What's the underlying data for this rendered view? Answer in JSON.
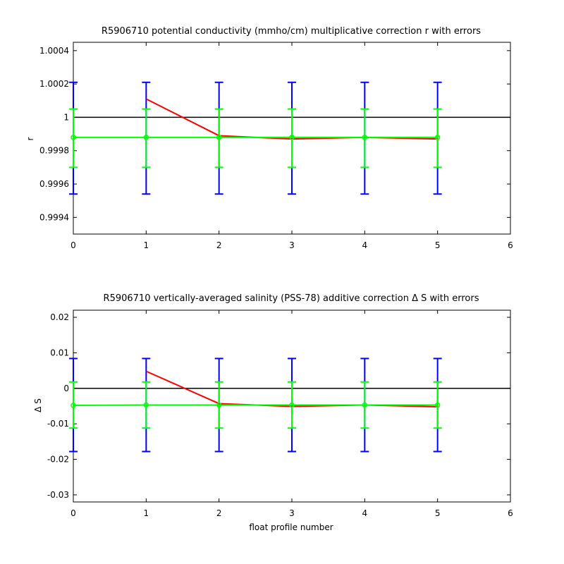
{
  "chart_data": [
    {
      "type": "line",
      "title": "R5906710 potential conductivity (mmho/cm) multiplicative correction r with errors",
      "xlabel": "",
      "ylabel": "r",
      "xlim": [
        0,
        6
      ],
      "ylim": [
        0.9993,
        1.00045
      ],
      "xticks": [
        "0",
        "1",
        "2",
        "3",
        "4",
        "5",
        "6"
      ],
      "yticks": [
        {
          "value": 0.9994,
          "label": "0.9994"
        },
        {
          "value": 0.9996,
          "label": "0.9996"
        },
        {
          "value": 0.9998,
          "label": "0.9998"
        },
        {
          "value": 1.0,
          "label": "1"
        },
        {
          "value": 1.0002,
          "label": "1.0002"
        },
        {
          "value": 1.0004,
          "label": "1.0004"
        }
      ],
      "reference_line": {
        "value": 1.0,
        "color": "#000000"
      },
      "series": [
        {
          "color": "#ff0000",
          "kind": "line",
          "x": [
            1,
            2,
            3,
            4,
            5
          ],
          "y": [
            1.00011,
            0.99989,
            0.99987,
            0.99988,
            0.99987
          ]
        },
        {
          "color": "#00ff00",
          "kind": "line-markers",
          "x": [
            0,
            1,
            2,
            3,
            4,
            5
          ],
          "y": [
            0.99988,
            0.99988,
            0.99988,
            0.99988,
            0.99988,
            0.99988
          ]
        }
      ],
      "errorbars": [
        {
          "color": "#0000ff",
          "x": [
            0,
            1,
            2,
            3,
            4,
            5
          ],
          "center": 0.99988,
          "lower": 0.99954,
          "upper": 1.00021
        },
        {
          "color": "#00ff00",
          "x": [
            0,
            1,
            2,
            3,
            4,
            5
          ],
          "center": 0.99988,
          "lower": 0.9997,
          "upper": 1.00005
        }
      ],
      "grid": false
    },
    {
      "type": "line",
      "title": "R5906710 vertically-averaged salinity (PSS-78) additive correction Δ S with errors",
      "xlabel": "float profile number",
      "ylabel": "Δ S",
      "xlim": [
        0,
        6
      ],
      "ylim": [
        -0.032,
        0.022
      ],
      "xticks": [
        "0",
        "1",
        "2",
        "3",
        "4",
        "5",
        "6"
      ],
      "yticks": [
        {
          "value": -0.03,
          "label": "-0.03"
        },
        {
          "value": -0.02,
          "label": "-0.02"
        },
        {
          "value": -0.01,
          "label": "-0.01"
        },
        {
          "value": 0,
          "label": "0"
        },
        {
          "value": 0.01,
          "label": "0.01"
        },
        {
          "value": 0.02,
          "label": "0.02"
        }
      ],
      "reference_line": {
        "value": 0,
        "color": "#000000"
      },
      "series": [
        {
          "color": "#ff0000",
          "kind": "line",
          "x": [
            1,
            2,
            3,
            4,
            5
          ],
          "y": [
            0.0048,
            -0.0043,
            -0.0051,
            -0.0047,
            -0.0052
          ]
        },
        {
          "color": "#00ff00",
          "kind": "line-markers",
          "x": [
            0,
            1,
            2,
            3,
            4,
            5
          ],
          "y": [
            -0.0048,
            -0.0047,
            -0.0047,
            -0.0047,
            -0.0047,
            -0.0047
          ]
        }
      ],
      "errorbars": [
        {
          "color": "#0000ff",
          "x": [
            0,
            1,
            2,
            3,
            4,
            5
          ],
          "center": -0.0047,
          "lower": -0.0178,
          "upper": 0.0084
        },
        {
          "color": "#00ff00",
          "x": [
            0,
            1,
            2,
            3,
            4,
            5
          ],
          "center": -0.0047,
          "lower": -0.0112,
          "upper": 0.0018
        }
      ],
      "grid": false
    }
  ]
}
